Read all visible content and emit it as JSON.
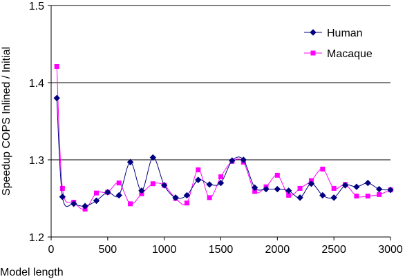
{
  "chart_data": {
    "type": "line",
    "title": "",
    "xlabel": "Model length",
    "ylabel": "Speedup COPS Inlined / Initial",
    "xlim": [
      0,
      3000
    ],
    "ylim": [
      1.2,
      1.5
    ],
    "xticks": [
      0,
      500,
      1000,
      1500,
      2000,
      2500,
      3000
    ],
    "yticks": [
      1.2,
      1.3,
      1.4,
      1.5
    ],
    "grid": "horizontal",
    "legend": "top-right",
    "series": [
      {
        "name": "Human",
        "color": "#000080",
        "marker": "diamond",
        "x": [
          50,
          100,
          200,
          300,
          400,
          500,
          600,
          700,
          800,
          900,
          1000,
          1100,
          1200,
          1300,
          1400,
          1500,
          1600,
          1700,
          1800,
          1900,
          2000,
          2100,
          2200,
          2300,
          2400,
          2500,
          2600,
          2700,
          2800,
          2900,
          3000
        ],
        "values": [
          1.38,
          1.252,
          1.243,
          1.24,
          1.247,
          1.258,
          1.254,
          1.297,
          1.26,
          1.303,
          1.267,
          1.251,
          1.254,
          1.274,
          1.268,
          1.27,
          1.299,
          1.3,
          1.264,
          1.262,
          1.262,
          1.26,
          1.251,
          1.269,
          1.254,
          1.251,
          1.267,
          1.265,
          1.27,
          1.262,
          1.261
        ]
      },
      {
        "name": "Macaque",
        "color": "#ff00ff",
        "marker": "square",
        "x": [
          50,
          100,
          200,
          300,
          400,
          500,
          600,
          700,
          800,
          900,
          1000,
          1100,
          1200,
          1300,
          1400,
          1500,
          1600,
          1700,
          1800,
          1900,
          2000,
          2100,
          2200,
          2300,
          2400,
          2500,
          2600,
          2700,
          2800,
          2900,
          3000
        ],
        "values": [
          1.421,
          1.263,
          1.245,
          1.236,
          1.257,
          1.258,
          1.27,
          1.243,
          1.256,
          1.269,
          1.267,
          1.25,
          1.244,
          1.287,
          1.251,
          1.278,
          1.298,
          1.297,
          1.259,
          1.265,
          1.28,
          1.254,
          1.263,
          1.273,
          1.288,
          1.263,
          1.268,
          1.253,
          1.253,
          1.255,
          1.261
        ]
      }
    ]
  }
}
